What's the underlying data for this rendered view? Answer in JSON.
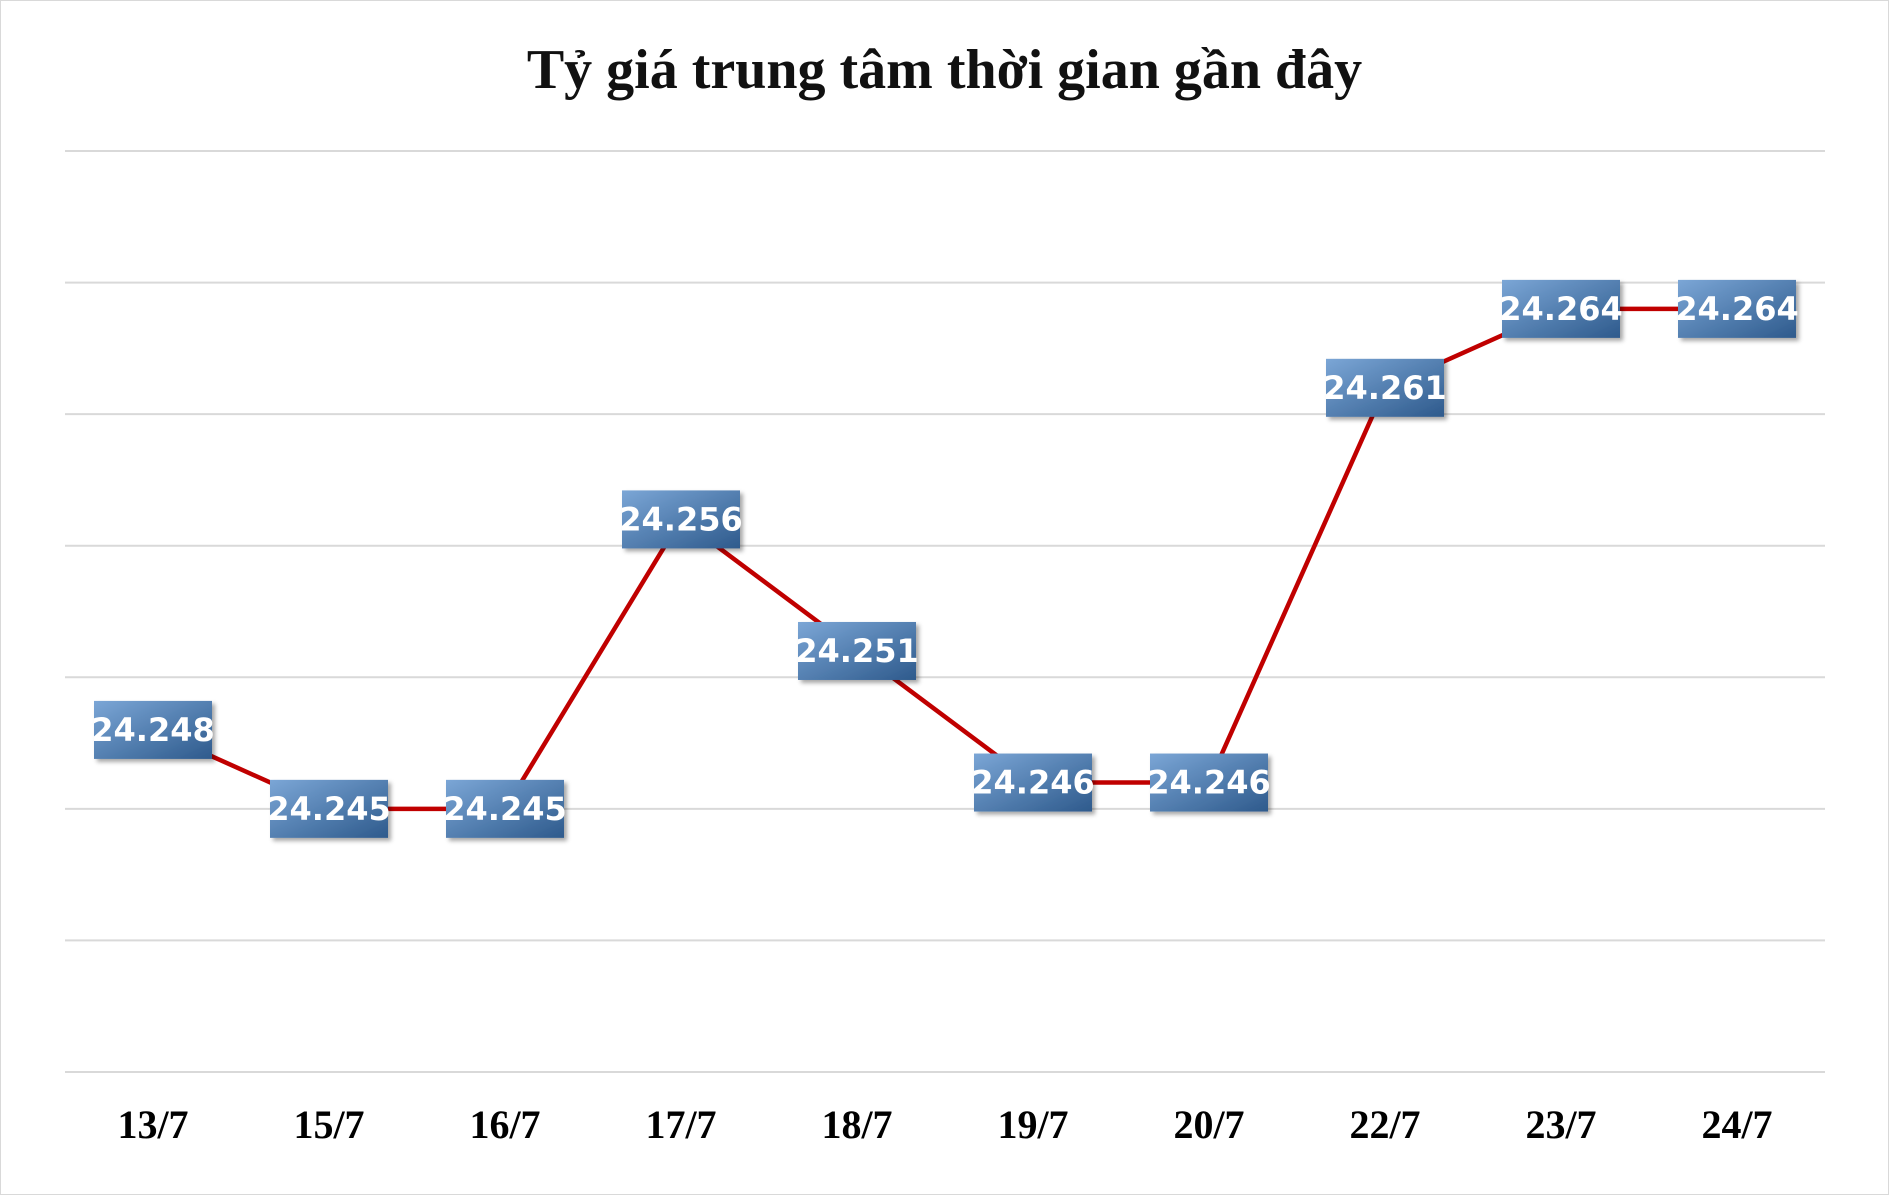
{
  "chart_data": {
    "type": "line",
    "title": "Tỷ giá trung tâm thời gian gần đây",
    "xlabel": "",
    "ylabel": "",
    "categories": [
      "13/7",
      "15/7",
      "16/7",
      "17/7",
      "18/7",
      "19/7",
      "20/7",
      "22/7",
      "23/7",
      "24/7"
    ],
    "series": [
      {
        "values": [
          24248,
          24245,
          24245,
          24256,
          24251,
          24246,
          24246,
          24261,
          24264,
          24264
        ],
        "labels": [
          "24.248",
          "24.245",
          "24.245",
          "24.256",
          "24.251",
          "24.246",
          "24.246",
          "24.261",
          "24.264",
          "24.264"
        ],
        "color": "#c00000"
      }
    ],
    "ylim": [
      24235,
      24270
    ],
    "gridlines": true,
    "y_axis_tick_labels_visible": false,
    "legend": "none",
    "data_label_style": {
      "fill_top": "#7ba6d6",
      "fill_bottom": "#2e5a8c",
      "text_color": "#ffffff"
    }
  }
}
